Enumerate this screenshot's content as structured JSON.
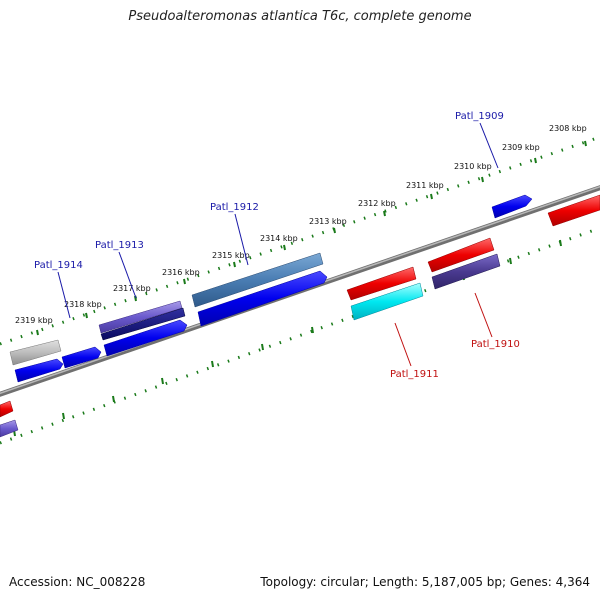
{
  "title": "Pseudoalteromonas atlantica T6c, complete genome",
  "footer": {
    "accession": "Accession: NC_008228",
    "stats": "Topology: circular; Length: 5,187,005 bp; Genes: 4,364"
  },
  "kbp_ticks": [
    "2308 kbp",
    "2309 kbp",
    "2310 kbp",
    "2311 kbp",
    "2312 kbp",
    "2313 kbp",
    "2314 kbp",
    "2315 kbp",
    "2316 kbp",
    "2317 kbp",
    "2318 kbp",
    "2319 kbp"
  ],
  "gene_labels": {
    "patl_1909": "Patl_1909",
    "patl_1912": "Patl_1912",
    "patl_1913": "Patl_1913",
    "patl_1914": "Patl_1914",
    "patl_1910": "Patl_1910",
    "patl_1911": "Patl_1911"
  },
  "colors": {
    "forward_label": "#1a1aa8",
    "reverse_label": "#c01010",
    "tick_dots": "#1a7a1a",
    "backbone": "#8a8a8a"
  }
}
